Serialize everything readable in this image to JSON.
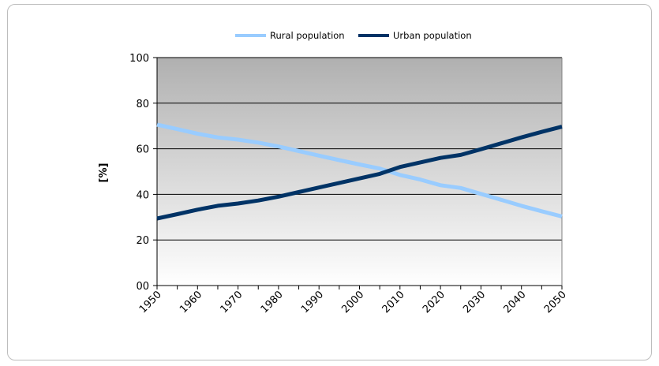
{
  "chart_data": {
    "type": "line",
    "title": "",
    "xlabel": "",
    "ylabel": "[%]",
    "x": [
      1950,
      1955,
      1960,
      1965,
      1970,
      1975,
      1980,
      1985,
      1990,
      1995,
      2000,
      2005,
      2010,
      2015,
      2020,
      2025,
      2030,
      2035,
      2040,
      2045,
      2050
    ],
    "x_tick_labels": [
      "1950",
      "1960",
      "1970",
      "1980",
      "1990",
      "2000",
      "2010",
      "2020",
      "2030",
      "2040",
      "2050"
    ],
    "y_tick_labels": [
      "00",
      "20",
      "40",
      "60",
      "80",
      "100"
    ],
    "xlim": [
      1950,
      2050
    ],
    "ylim": [
      0,
      100
    ],
    "grid": true,
    "legend_position": "top",
    "series": [
      {
        "name": "Rural population",
        "color": "#99ccff",
        "values": [
          70.6,
          68.6,
          66.6,
          65.0,
          64.0,
          62.7,
          61.0,
          59.0,
          57.0,
          55.0,
          53.1,
          51.3,
          48.5,
          46.5,
          44.0,
          42.8,
          40.2,
          37.6,
          35.0,
          32.6,
          30.3
        ]
      },
      {
        "name": "Urban population",
        "color": "#003366",
        "values": [
          29.4,
          31.3,
          33.3,
          35.0,
          36.0,
          37.3,
          39.0,
          41.0,
          43.0,
          45.0,
          47.0,
          49.0,
          52.0,
          54.0,
          56.0,
          57.3,
          59.8,
          62.4,
          65.0,
          67.4,
          69.7
        ]
      }
    ]
  },
  "colors": {
    "plot_top": "#b0b0b0",
    "plot_bottom": "#ffffff",
    "gridline": "#000000"
  }
}
